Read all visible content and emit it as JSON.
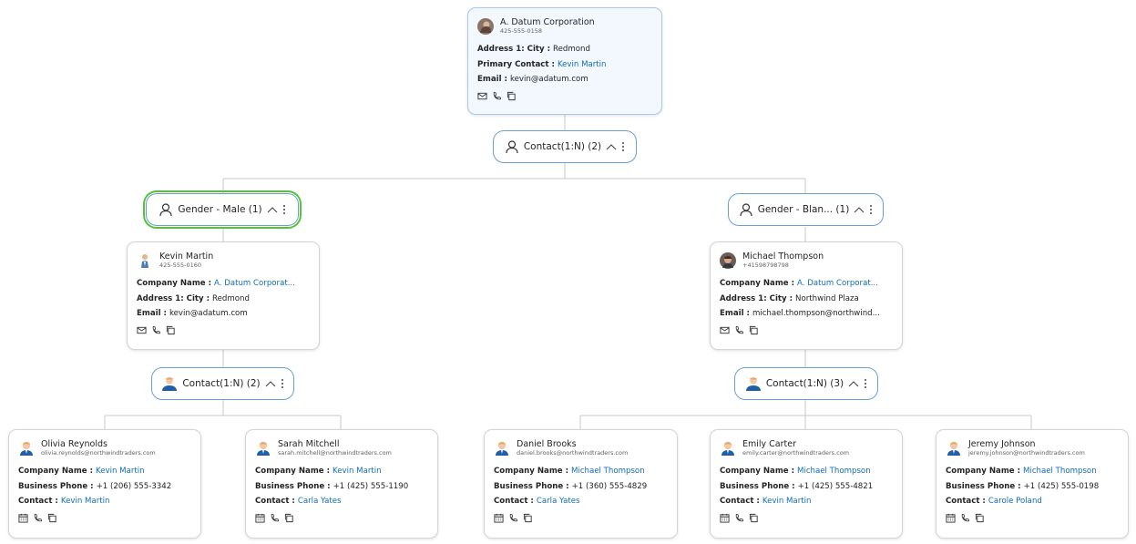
{
  "root": {
    "title": "A. Datum Corporation",
    "subtitle": "425-555-0158",
    "fields": [
      {
        "label": "Address 1: City :",
        "value": "Redmond"
      },
      {
        "label": "Primary Contact :",
        "value": "Kevin Martin",
        "link": true
      },
      {
        "label": "Email :",
        "value": "kevin@adatum.com"
      }
    ]
  },
  "groups": [
    {
      "label": "Contact(1:N) (2)"
    },
    {
      "label": "Gender - Male (1)",
      "selected": true
    },
    {
      "label": "Gender - Blan... (1)"
    },
    {
      "label": "Contact(1:N) (2)"
    },
    {
      "label": "Contact(1:N) (3)"
    }
  ],
  "cards": [
    {
      "title": "Kevin Martin",
      "subtitle": "425-555-0160",
      "fields": [
        {
          "label": "Company Name :",
          "value": "A. Datum Corporat...",
          "link": true
        },
        {
          "label": "Address 1: City :",
          "value": "Redmond"
        },
        {
          "label": "Email :",
          "value": "kevin@adatum.com"
        }
      ]
    },
    {
      "title": "Michael Thompson",
      "subtitle": "+41598798798",
      "fields": [
        {
          "label": "Company Name :",
          "value": "A. Datum Corporat...",
          "link": true
        },
        {
          "label": "Address 1: City :",
          "value": "Northwind Plaza"
        },
        {
          "label": "Email :",
          "value": "michael.thompson@northwind..."
        }
      ]
    },
    {
      "title": "Olivia Reynolds",
      "subtitle": "olivia.reynolds@northwindtraders.com",
      "fields": [
        {
          "label": "Company Name :",
          "value": "Kevin Martin",
          "link": true
        },
        {
          "label": "Business Phone :",
          "value": "+1 (206) 555-3342"
        },
        {
          "label": "Contact :",
          "value": "Kevin Martin",
          "link": true
        }
      ]
    },
    {
      "title": "Sarah Mitchell",
      "subtitle": "sarah.mitchell@northwindtraders.com",
      "fields": [
        {
          "label": "Company Name :",
          "value": "Kevin Martin",
          "link": true
        },
        {
          "label": "Business Phone :",
          "value": "+1 (425) 555-1190"
        },
        {
          "label": "Contact :",
          "value": "Carla Yates",
          "link": true
        }
      ]
    },
    {
      "title": "Daniel Brooks",
      "subtitle": "daniel.brooks@northwindtraders.com",
      "fields": [
        {
          "label": "Company Name :",
          "value": "Michael Thompson",
          "link": true
        },
        {
          "label": "Business Phone :",
          "value": "+1 (360) 555-4829"
        },
        {
          "label": "Contact :",
          "value": "Carla Yates",
          "link": true
        }
      ]
    },
    {
      "title": "Emily Carter",
      "subtitle": "emily.carter@northwindtraders.com",
      "fields": [
        {
          "label": "Company Name :",
          "value": "Michael Thompson",
          "link": true
        },
        {
          "label": "Business Phone :",
          "value": "+1 (425) 555-4821"
        },
        {
          "label": "Contact :",
          "value": "Kevin Martin",
          "link": true
        }
      ]
    },
    {
      "title": "Jeremy Johnson",
      "subtitle": "jeremy.johnson@northwindtraders.com",
      "fields": [
        {
          "label": "Company Name :",
          "value": "Michael Thompson",
          "link": true
        },
        {
          "label": "Business Phone :",
          "value": "+1 (425) 555-0198"
        },
        {
          "label": "Contact :",
          "value": "Carole Poland",
          "link": true
        }
      ]
    }
  ]
}
